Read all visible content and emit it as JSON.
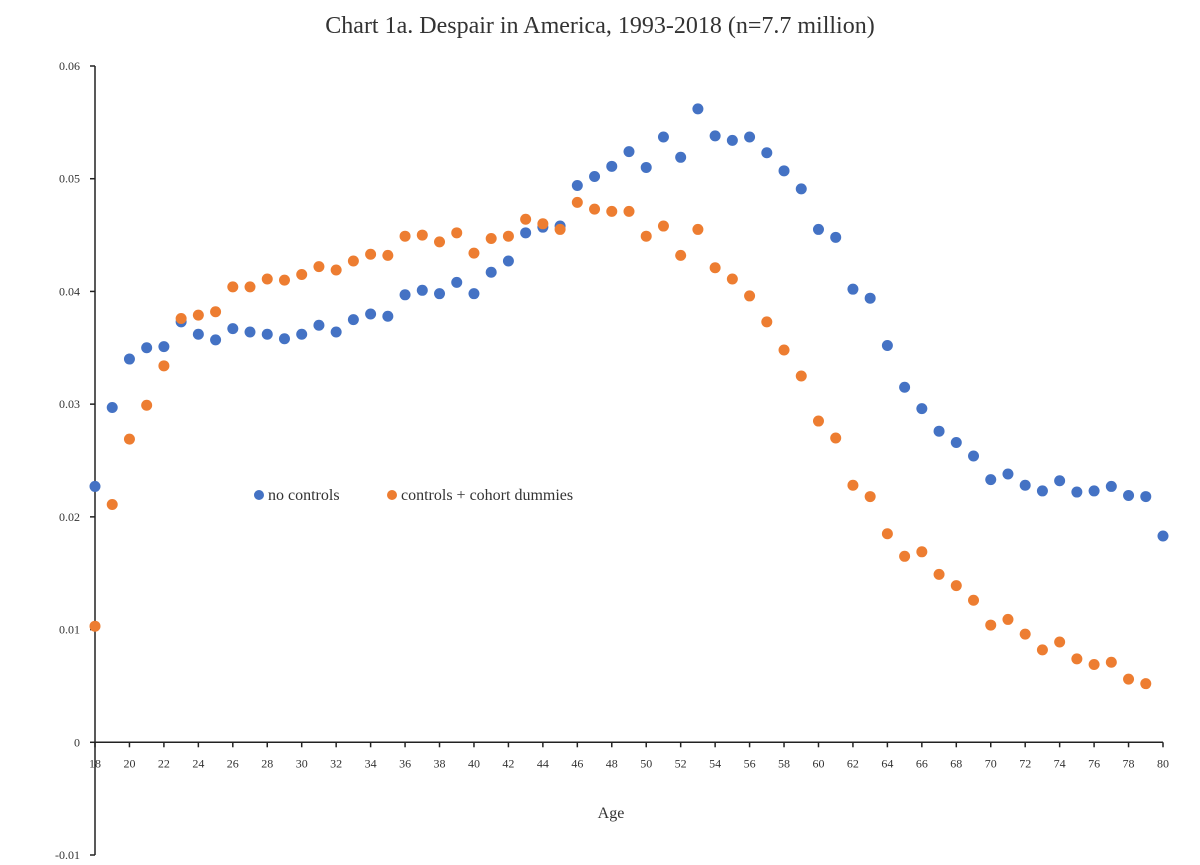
{
  "chart_data": {
    "type": "scatter",
    "title": "Chart 1a.  Despair in America, 1993-2018 (n=7.7 million)",
    "xlabel": "Age",
    "ylabel": "",
    "xlim": [
      18,
      80
    ],
    "ylim": [
      -0.01,
      0.06
    ],
    "x_ticks": [
      "18",
      "20",
      "22",
      "24",
      "26",
      "28",
      "30",
      "32",
      "34",
      "36",
      "38",
      "40",
      "42",
      "44",
      "46",
      "48",
      "50",
      "52",
      "54",
      "56",
      "58",
      "60",
      "62",
      "64",
      "66",
      "68",
      "70",
      "72",
      "74",
      "76",
      "78",
      "80"
    ],
    "y_ticks": [
      "-0.01",
      "0",
      "0.01",
      "0.02",
      "0.03",
      "0.04",
      "0.05",
      "0.06"
    ],
    "grid": false,
    "legend_position": "center-left",
    "x": [
      18,
      19,
      20,
      21,
      22,
      23,
      24,
      25,
      26,
      27,
      28,
      29,
      30,
      31,
      32,
      33,
      34,
      35,
      36,
      37,
      38,
      39,
      40,
      41,
      42,
      43,
      44,
      45,
      46,
      47,
      48,
      49,
      50,
      51,
      52,
      53,
      54,
      55,
      56,
      57,
      58,
      59,
      60,
      61,
      62,
      63,
      64,
      65,
      66,
      67,
      68,
      69,
      70,
      71,
      72,
      73,
      74,
      75,
      76,
      77,
      78,
      79,
      80
    ],
    "series": [
      {
        "name": "no controls",
        "color": "#4472C4",
        "values": [
          0.0227,
          0.0297,
          0.034,
          0.035,
          0.0351,
          0.0373,
          0.0362,
          0.0357,
          0.0367,
          0.0364,
          0.0362,
          0.0358,
          0.0362,
          0.037,
          0.0364,
          0.0375,
          0.038,
          0.0378,
          0.0397,
          0.0401,
          0.0398,
          0.0408,
          0.0398,
          0.0417,
          0.0427,
          0.0452,
          0.0457,
          0.0458,
          0.0494,
          0.0502,
          0.0511,
          0.0524,
          0.051,
          0.0537,
          0.0519,
          0.0562,
          0.0538,
          0.0534,
          0.0537,
          0.0523,
          0.0507,
          0.0491,
          0.0455,
          0.0448,
          0.0402,
          0.0394,
          0.0352,
          0.0315,
          0.0296,
          0.0276,
          0.0266,
          0.0254,
          0.0233,
          0.0238,
          0.0228,
          0.0223,
          0.0232,
          0.0222,
          0.0223,
          0.0227,
          0.0219,
          0.0218,
          0.0183
        ]
      },
      {
        "name": "controls + cohort dummies",
        "color": "#ED7D31",
        "values": [
          0.0103,
          0.0211,
          0.0269,
          0.0299,
          0.0334,
          0.0376,
          0.0379,
          0.0382,
          0.0404,
          0.0404,
          0.0411,
          0.041,
          0.0415,
          0.0422,
          0.0419,
          0.0427,
          0.0433,
          0.0432,
          0.0449,
          0.045,
          0.0444,
          0.0452,
          0.0434,
          0.0447,
          0.0449,
          0.0464,
          0.046,
          0.0455,
          0.0479,
          0.0473,
          0.0471,
          0.0471,
          0.0449,
          0.0458,
          0.0432,
          0.0455,
          0.0421,
          0.0411,
          0.0396,
          0.0373,
          0.0348,
          0.0325,
          0.0285,
          0.027,
          0.0228,
          0.0218,
          0.0185,
          0.0165,
          0.0169,
          0.0149,
          0.0139,
          0.0126,
          0.0104,
          0.0109,
          0.0096,
          0.0082,
          0.0089,
          0.0074,
          0.0069,
          0.0071,
          0.0056,
          0.0052,
          null
        ]
      }
    ]
  }
}
